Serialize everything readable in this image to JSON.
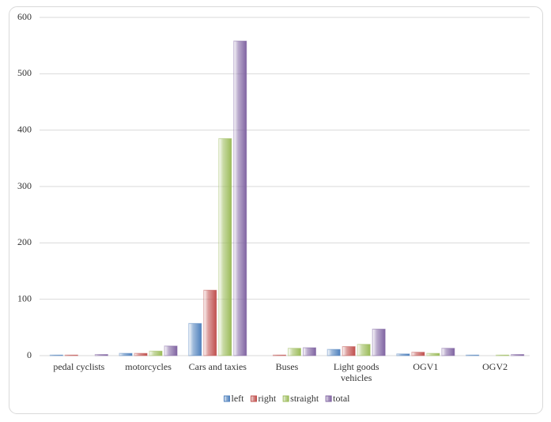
{
  "chart_data": {
    "type": "bar",
    "categories": [
      "pedal cyclists",
      "motorcycles",
      "Cars and taxies",
      "Buses",
      "Light goods vehicles",
      "OGV1",
      "OGV2"
    ],
    "series": [
      {
        "name": "left",
        "color": "#4f81bd",
        "values": [
          1,
          4,
          57,
          0,
          11,
          3,
          1
        ]
      },
      {
        "name": "right",
        "color": "#c0504d",
        "values": [
          1,
          4,
          116,
          1,
          16,
          6,
          0
        ]
      },
      {
        "name": "straight",
        "color": "#9bbb59",
        "values": [
          0,
          8,
          385,
          13,
          20,
          4,
          1
        ]
      },
      {
        "name": "total",
        "color": "#8064a2",
        "values": [
          2,
          17,
          558,
          14,
          47,
          13,
          2
        ]
      }
    ],
    "ylim": [
      0,
      600
    ],
    "yticks": [
      0,
      100,
      200,
      300,
      400,
      500,
      600
    ],
    "grid": true,
    "legend": "bottom"
  }
}
